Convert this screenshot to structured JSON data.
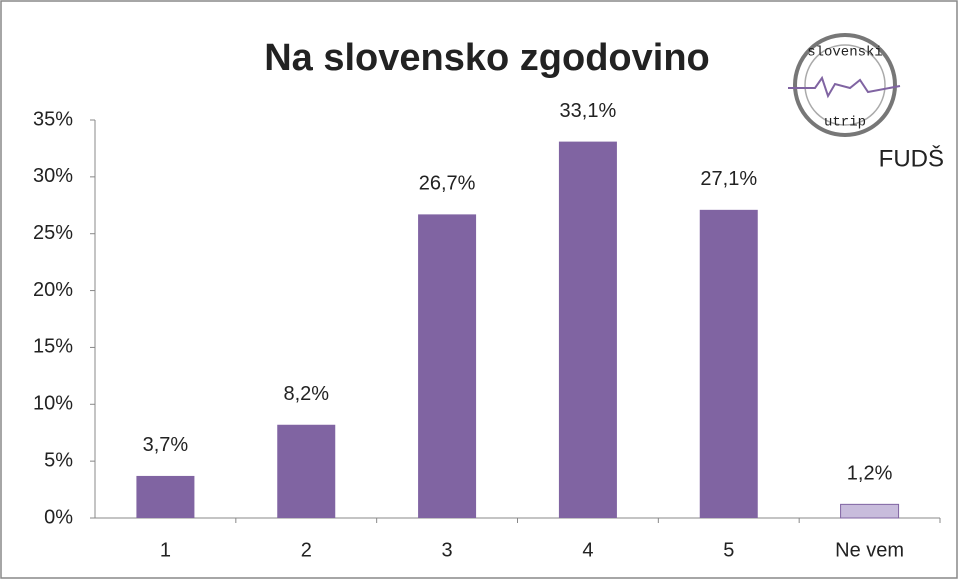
{
  "chart_data": {
    "type": "bar",
    "title": "Na slovensko zgodovino",
    "categories": [
      "1",
      "2",
      "3",
      "4",
      "5",
      "Ne vem"
    ],
    "values": [
      3.7,
      8.2,
      26.7,
      33.1,
      27.1,
      1.2
    ],
    "value_labels": [
      "3,7%",
      "8,2%",
      "26,7%",
      "33,1%",
      "27,1%",
      "1,2%"
    ],
    "colors": [
      "#8064a2",
      "#8064a2",
      "#8064a2",
      "#8064a2",
      "#8064a2",
      "#c8bcdc"
    ],
    "ylim": [
      0,
      35
    ],
    "yticks": [
      {
        "value": 0,
        "label": "0%"
      },
      {
        "value": 5,
        "label": "5%"
      },
      {
        "value": 10,
        "label": "10%"
      },
      {
        "value": 15,
        "label": "15%"
      },
      {
        "value": 20,
        "label": "20%"
      },
      {
        "value": 25,
        "label": "25%"
      },
      {
        "value": 30,
        "label": "30%"
      },
      {
        "value": 35,
        "label": "35%"
      }
    ],
    "grid": false,
    "logo": {
      "top": "slovenski",
      "bottom": "utrip",
      "org": "FUDŠ"
    }
  }
}
